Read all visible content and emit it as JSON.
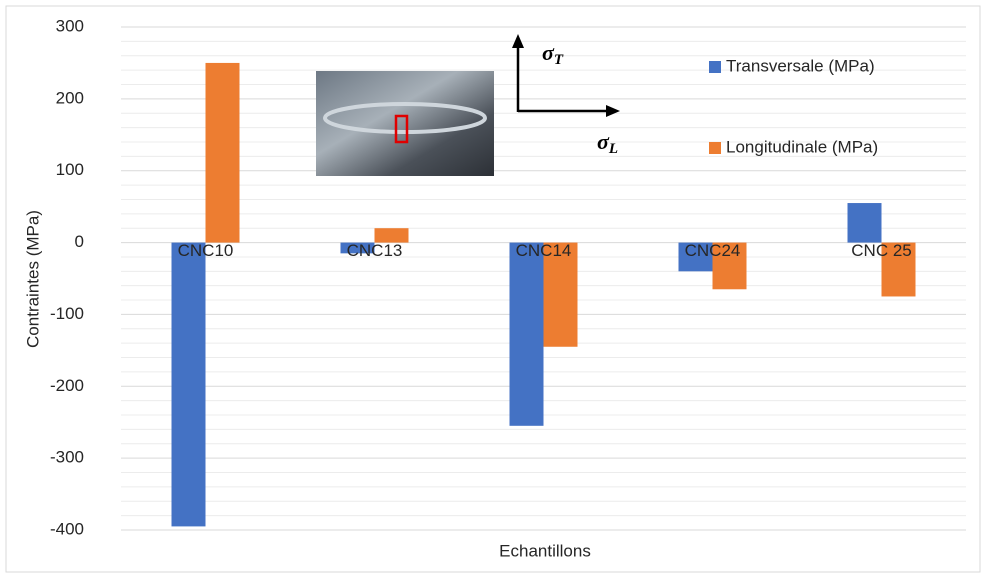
{
  "chart_data": {
    "type": "bar",
    "x_label": "Echantillons",
    "y_label": "Contraintes (MPa)",
    "categories": [
      "CNC10",
      "CNC13",
      "CNC14",
      "CNC24",
      "CNC 25"
    ],
    "series": [
      {
        "name": "Transversale (MPa)",
        "color": "#4472c4",
        "values": [
          -395,
          -15,
          -255,
          -40,
          55
        ]
      },
      {
        "name": "Longitudinale (MPa)",
        "color": "#ed7d31",
        "values": [
          250,
          20,
          -145,
          -65,
          -75
        ]
      }
    ],
    "ylim": [
      -400,
      300
    ],
    "yticks": [
      -400,
      -300,
      -200,
      -100,
      0,
      100,
      200,
      300
    ],
    "grid": true,
    "grid_step": 20,
    "annotations": [
      {
        "symbol": "σ",
        "subscript": "T"
      },
      {
        "symbol": "σ",
        "subscript": "L"
      }
    ]
  }
}
